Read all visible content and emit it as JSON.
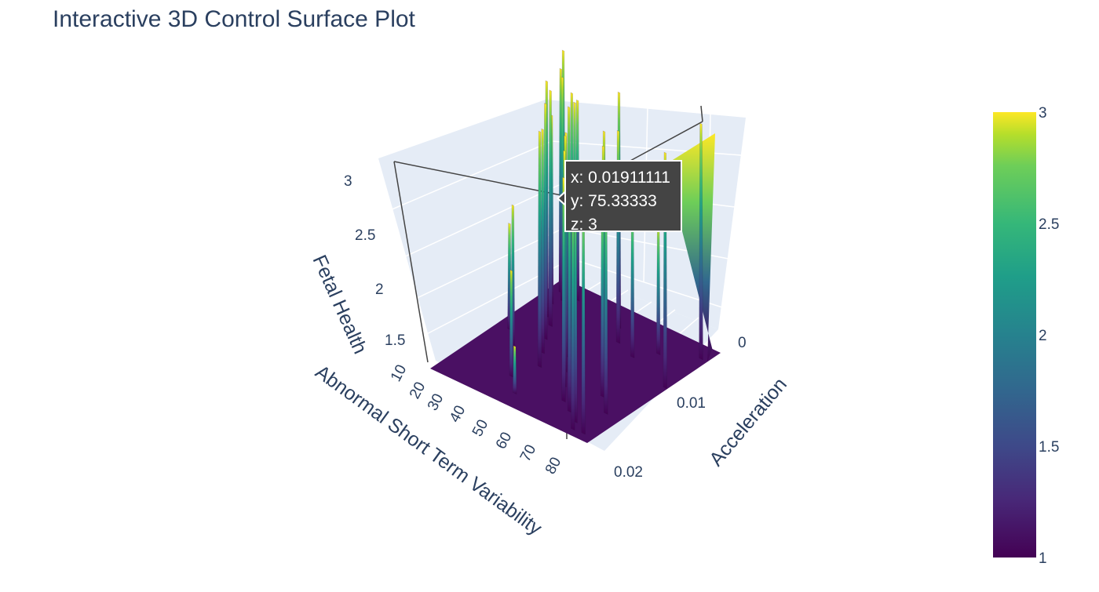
{
  "chart_data": {
    "type": "surface",
    "title": "Interactive 3D Control Surface Plot",
    "x_axis": {
      "title": "Acceleration",
      "ticks": [
        "0",
        "0.01",
        "0.02"
      ],
      "range": [
        0,
        0.02
      ]
    },
    "y_axis": {
      "title": "Abnormal Short Term Variability",
      "ticks": [
        "10",
        "20",
        "30",
        "40",
        "50",
        "60",
        "70",
        "80"
      ],
      "range": [
        10,
        85
      ]
    },
    "z_axis": {
      "title": "Fetal Health",
      "ticks": [
        "1.5",
        "2",
        "2.5",
        "3"
      ],
      "range": [
        1,
        3
      ]
    },
    "colorscale": "Viridis",
    "colorbar": {
      "ticks": [
        "1",
        "1.5",
        "2",
        "2.5",
        "3"
      ],
      "range": [
        1,
        3
      ]
    },
    "grid": true,
    "hover": {
      "x_label": "x: 0.01911111",
      "y_label": "y: 75.33333",
      "z_label": "z: 3",
      "x": 0.01911111,
      "y": 75.33333,
      "z": 3
    },
    "surface_spikes": [
      {
        "y": 12,
        "x": 0.0005,
        "z": 1.8
      },
      {
        "y": 13,
        "x": 0.001,
        "z": 3
      },
      {
        "y": 15,
        "x": 0.002,
        "z": 2.9
      },
      {
        "y": 17,
        "x": 0.004,
        "z": 2.6
      },
      {
        "y": 19,
        "x": 0.003,
        "z": 2.9
      },
      {
        "y": 21,
        "x": 0.006,
        "z": 3
      },
      {
        "y": 23,
        "x": 0.002,
        "z": 2.7
      },
      {
        "y": 26,
        "x": 0.007,
        "z": 3
      },
      {
        "y": 28,
        "x": 0.004,
        "z": 2.8
      },
      {
        "y": 30,
        "x": 0.009,
        "z": 3
      },
      {
        "y": 33,
        "x": 0.006,
        "z": 3
      },
      {
        "y": 35,
        "x": 0.011,
        "z": 2.9
      },
      {
        "y": 38,
        "x": 0.008,
        "z": 3
      },
      {
        "y": 40,
        "x": 0.013,
        "z": 3
      },
      {
        "y": 43,
        "x": 0.01,
        "z": 2.9
      },
      {
        "y": 46,
        "x": 0.003,
        "z": 3
      },
      {
        "y": 49,
        "x": 0.012,
        "z": 3
      },
      {
        "y": 52,
        "x": 0.005,
        "z": 2.8
      },
      {
        "y": 55,
        "x": 0.014,
        "z": 3
      },
      {
        "y": 58,
        "x": 0.009,
        "z": 3
      },
      {
        "y": 61,
        "x": 0.016,
        "z": 2.9
      },
      {
        "y": 64,
        "x": 0.011,
        "z": 3
      },
      {
        "y": 67,
        "x": 0.017,
        "z": 3
      },
      {
        "y": 70,
        "x": 0.013,
        "z": 2.7
      },
      {
        "y": 73,
        "x": 0.018,
        "z": 3
      },
      {
        "y": 75.3,
        "x": 0.0191,
        "z": 3
      },
      {
        "y": 78,
        "x": 0.015,
        "z": 2.9
      },
      {
        "y": 80,
        "x": 0.019,
        "z": 3
      },
      {
        "y": 82,
        "x": 0.002,
        "z": 3
      },
      {
        "y": 84,
        "x": 0.008,
        "z": 3
      },
      {
        "y": 36,
        "x": 0.016,
        "z": 1.9
      },
      {
        "y": 44,
        "x": 0.018,
        "z": 1.4
      },
      {
        "y": 62,
        "x": 0.006,
        "z": 2.3
      },
      {
        "y": 68,
        "x": 0.004,
        "z": 2.1
      },
      {
        "y": 24,
        "x": 0.012,
        "z": 2.2
      },
      {
        "y": 16,
        "x": 0.01,
        "z": 1.9
      }
    ]
  }
}
